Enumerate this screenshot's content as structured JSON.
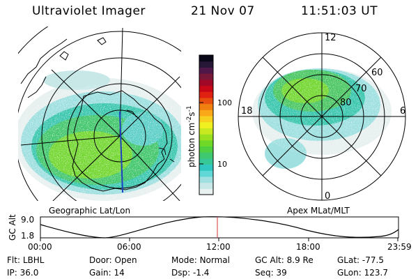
{
  "header": {
    "instrument": "Ultraviolet Imager",
    "date": "21 Nov 07",
    "time": "11:51:03 UT"
  },
  "geo_map": {
    "label": "Geographic Lat/Lon"
  },
  "apex_map": {
    "label": "Apex MLat/MLT",
    "mlt_labels": [
      "12",
      "18",
      "6",
      "0"
    ],
    "lat_labels": [
      "60",
      "70",
      "80"
    ]
  },
  "colorbar": {
    "unit_label": "photon cm",
    "unit_sup1": "-2",
    "unit_s": "s",
    "unit_sup2": "-1",
    "ticks": [
      "100",
      "10"
    ],
    "colors": [
      "#e8f0f0",
      "#c8e8e8",
      "#a0e0e0",
      "#60d8d8",
      "#30c8c0",
      "#38c898",
      "#40c870",
      "#50d040",
      "#70d828",
      "#98e020",
      "#c8e820",
      "#f0f020",
      "#f8d020",
      "#f8a818",
      "#f08010",
      "#e85010",
      "#e02010",
      "#c80818",
      "#a00828",
      "#781838",
      "#501848",
      "#281838",
      "#080818"
    ]
  },
  "strip": {
    "ylabel": "GC Alt",
    "y_ticks": [
      "9.0",
      "1.8"
    ],
    "x_ticks": [
      "00:00",
      "06:00",
      "12:00",
      "18:00",
      "23:59"
    ]
  },
  "footer": {
    "rows": [
      [
        {
          "key": "Flt:",
          "value": "LBHL"
        },
        {
          "key": "Door:",
          "value": "Open"
        },
        {
          "key": "Mode:",
          "value": "Normal"
        },
        {
          "key": "GC Alt:",
          "value": "8.9 Re"
        },
        {
          "key": "GLat:",
          "value": "-77.5"
        }
      ],
      [
        {
          "key": "IP:",
          "value": "36.0"
        },
        {
          "key": "Gain:",
          "value": "14"
        },
        {
          "key": "Dsp:",
          "value": "-1.4"
        },
        {
          "key": "Seq:",
          "value": "39"
        },
        {
          "key": "GLon:",
          "value": "123.7"
        }
      ]
    ]
  }
}
